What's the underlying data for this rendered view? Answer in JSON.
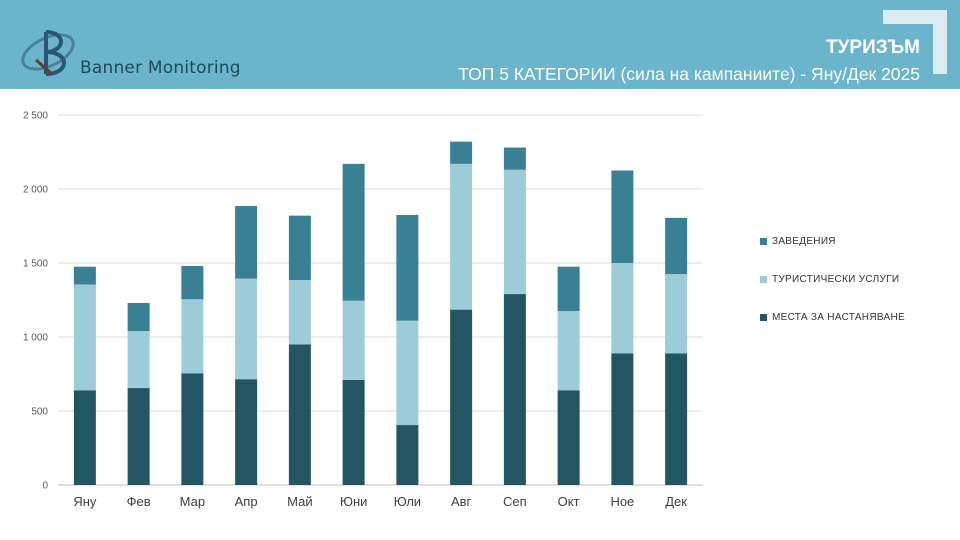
{
  "header": {
    "brand": "Banner Monitoring",
    "title": "ТУРИЗЪМ",
    "subtitle": "ТОП 5 КАТЕГОРИИ (сила на кампаниите) - Яну/Дек 2025",
    "color": "#6bb5cc"
  },
  "chart_data": {
    "type": "bar",
    "stacked": true,
    "categories": [
      "Яну",
      "Фев",
      "Мар",
      "Апр",
      "Май",
      "Юни",
      "Юли",
      "Авг",
      "Сеп",
      "Окт",
      "Ное",
      "Дек"
    ],
    "series": [
      {
        "name": "МЕСТА ЗА НАСТАНЯВАНЕ",
        "color": "#235563",
        "values": [
          640,
          655,
          755,
          715,
          950,
          710,
          405,
          1185,
          1290,
          640,
          890,
          890
        ]
      },
      {
        "name": "ТУРИСТИЧЕСКИ УСЛУГИ",
        "color": "#9ecbd8",
        "values": [
          715,
          385,
          500,
          680,
          435,
          535,
          705,
          985,
          840,
          535,
          610,
          535
        ]
      },
      {
        "name": "ЗАВЕДЕНИЯ",
        "color": "#3a8095",
        "values": [
          120,
          190,
          225,
          490,
          435,
          925,
          715,
          150,
          150,
          300,
          625,
          380
        ]
      }
    ],
    "yticks": [
      "0",
      "500",
      "1 000",
      "1 500",
      "2 000",
      "2 500"
    ],
    "ylim": [
      0,
      2500
    ],
    "grid": true,
    "legend_position": "right",
    "legend_order": [
      "ЗАВЕДЕНИЯ",
      "ТУРИСТИЧЕСКИ УСЛУГИ",
      "МЕСТА ЗА НАСТАНЯВАНЕ"
    ]
  }
}
